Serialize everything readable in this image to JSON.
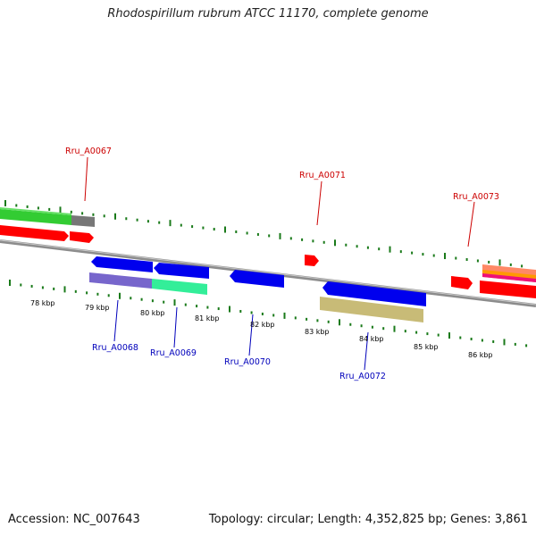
{
  "title": "Rhodospirillum rubrum ATCC 11170, complete genome",
  "footer": {
    "accession": "Accession: NC_007643",
    "summary": "Topology: circular; Length: 4,352,825 bp; Genes: 3,861"
  },
  "colors": {
    "backbone": "#8c8c8c",
    "tick": "#1a7a1a",
    "forward_label": "#cc0000",
    "reverse_label": "#0000bb",
    "gene_red": "#ff0000",
    "gene_blue": "#0000ee"
  },
  "scale_labels": [
    "78 kbp",
    "79 kbp",
    "80 kbp",
    "81 kbp",
    "82 kbp",
    "83 kbp",
    "84 kbp",
    "85 kbp",
    "86 kbp"
  ],
  "forward_labels": [
    "Rru_A0067",
    "Rru_A0071",
    "Rru_A0073"
  ],
  "reverse_labels": [
    "Rru_A0068",
    "Rru_A0069",
    "Rru_A0070",
    "Rru_A0072"
  ]
}
